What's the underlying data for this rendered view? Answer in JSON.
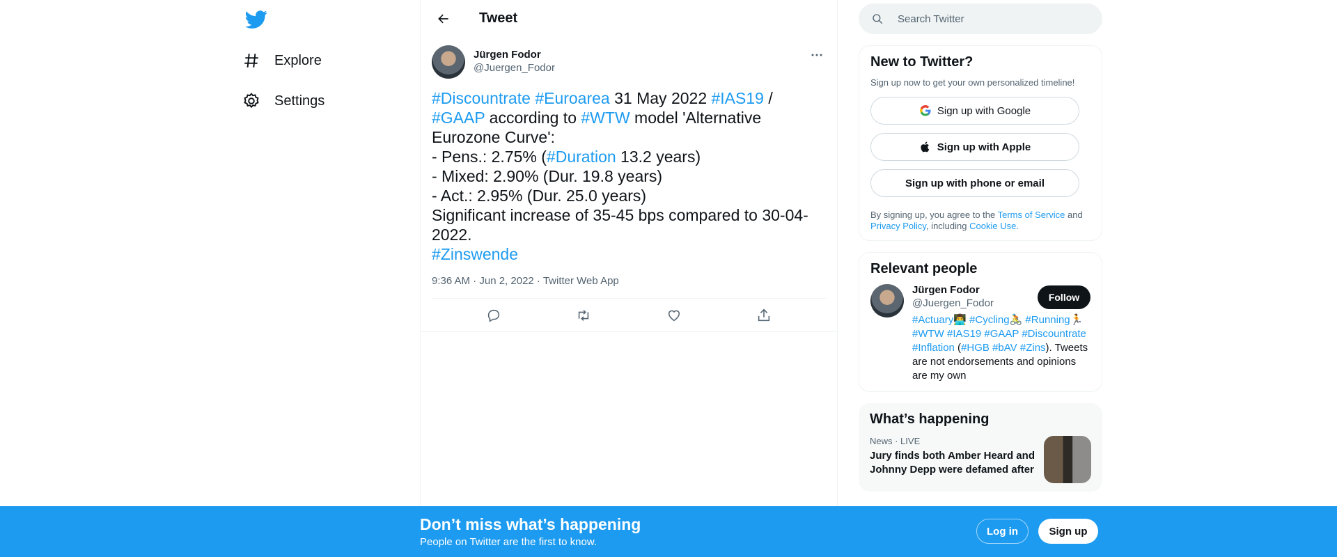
{
  "nav": {
    "items": [
      {
        "label": "Explore",
        "icon": "hashtag-icon"
      },
      {
        "label": "Settings",
        "icon": "gear-icon"
      }
    ]
  },
  "header": {
    "title": "Tweet"
  },
  "tweet": {
    "author_name": "Jürgen Fodor",
    "author_handle": "@Juergen_Fodor",
    "lines": {
      "l1": {
        "h1": "#Discountrate",
        "h2": "#Euroarea",
        "t1": " 31 May 2022 ",
        "h3": "#IAS19",
        "t2": " /"
      },
      "l2": {
        "h1": "#GAAP",
        "t1": " according to ",
        "h2": "#WTW",
        "t2": " model 'Alternative"
      },
      "l3": {
        "t1": "Eurozone Curve':"
      },
      "l4": {
        "t1": "- Pens.: 2.75% (",
        "h1": "#Duration",
        "t2": " 13.2 years)"
      },
      "l5": {
        "t1": "- Mixed: 2.90% (Dur. 19.8 years)"
      },
      "l6": {
        "t1": "- Act.: 2.95% (Dur. 25.0 years)"
      },
      "l7": {
        "t1": "Significant increase of 35-45 bps compared to 30-04-"
      },
      "l8": {
        "t1": "2022."
      },
      "l9": {
        "h1": "#Zinswende"
      }
    },
    "meta": "9:36 AM · Jun 2, 2022 · Twitter Web App"
  },
  "search": {
    "placeholder": "Search Twitter"
  },
  "new_to_twitter": {
    "title": "New to Twitter?",
    "subtitle": "Sign up now to get your own personalized timeline!",
    "google_label": "Sign up with Google",
    "apple_label": "Sign up with Apple",
    "phone_label": "Sign up with phone or email",
    "terms_pre": "By signing up, you agree to the ",
    "terms_link": "Terms of Service",
    "terms_and": " and",
    "privacy_link": "Privacy Policy",
    "terms_including": ", including ",
    "cookie_link": "Cookie Use."
  },
  "relevant": {
    "title": "Relevant people",
    "name": "Jürgen Fodor",
    "handle": "@Juergen_Fodor",
    "follow_label": "Follow",
    "bio": {
      "b1": "#Actuary👨‍💻",
      "b2": "#Cycling🚴",
      "b3": "#Running🏃",
      "b4": "#WTW",
      "b5": "#IAS19",
      "b6": "#GAAP",
      "b7": "#Discountrate",
      "b8": "#Inflation",
      "p1": " (",
      "b9": "#HGB",
      "b10": "#bAV",
      "b11": "#Zins",
      "p2": ").",
      "tail": "Tweets are not endorsements and opinions are my own"
    }
  },
  "happening": {
    "title": "What’s happening",
    "trend_meta": "News · LIVE",
    "trend_title": "Jury finds both Amber Heard and Johnny Depp were defamed after"
  },
  "bottombar": {
    "title": "Don’t miss what’s happening",
    "subtitle": "People on Twitter are the first to know.",
    "login_label": "Log in",
    "signup_label": "Sign up"
  },
  "colors": {
    "accent": "#1d9bf0",
    "text": "#0f1419",
    "muted": "#536471"
  }
}
